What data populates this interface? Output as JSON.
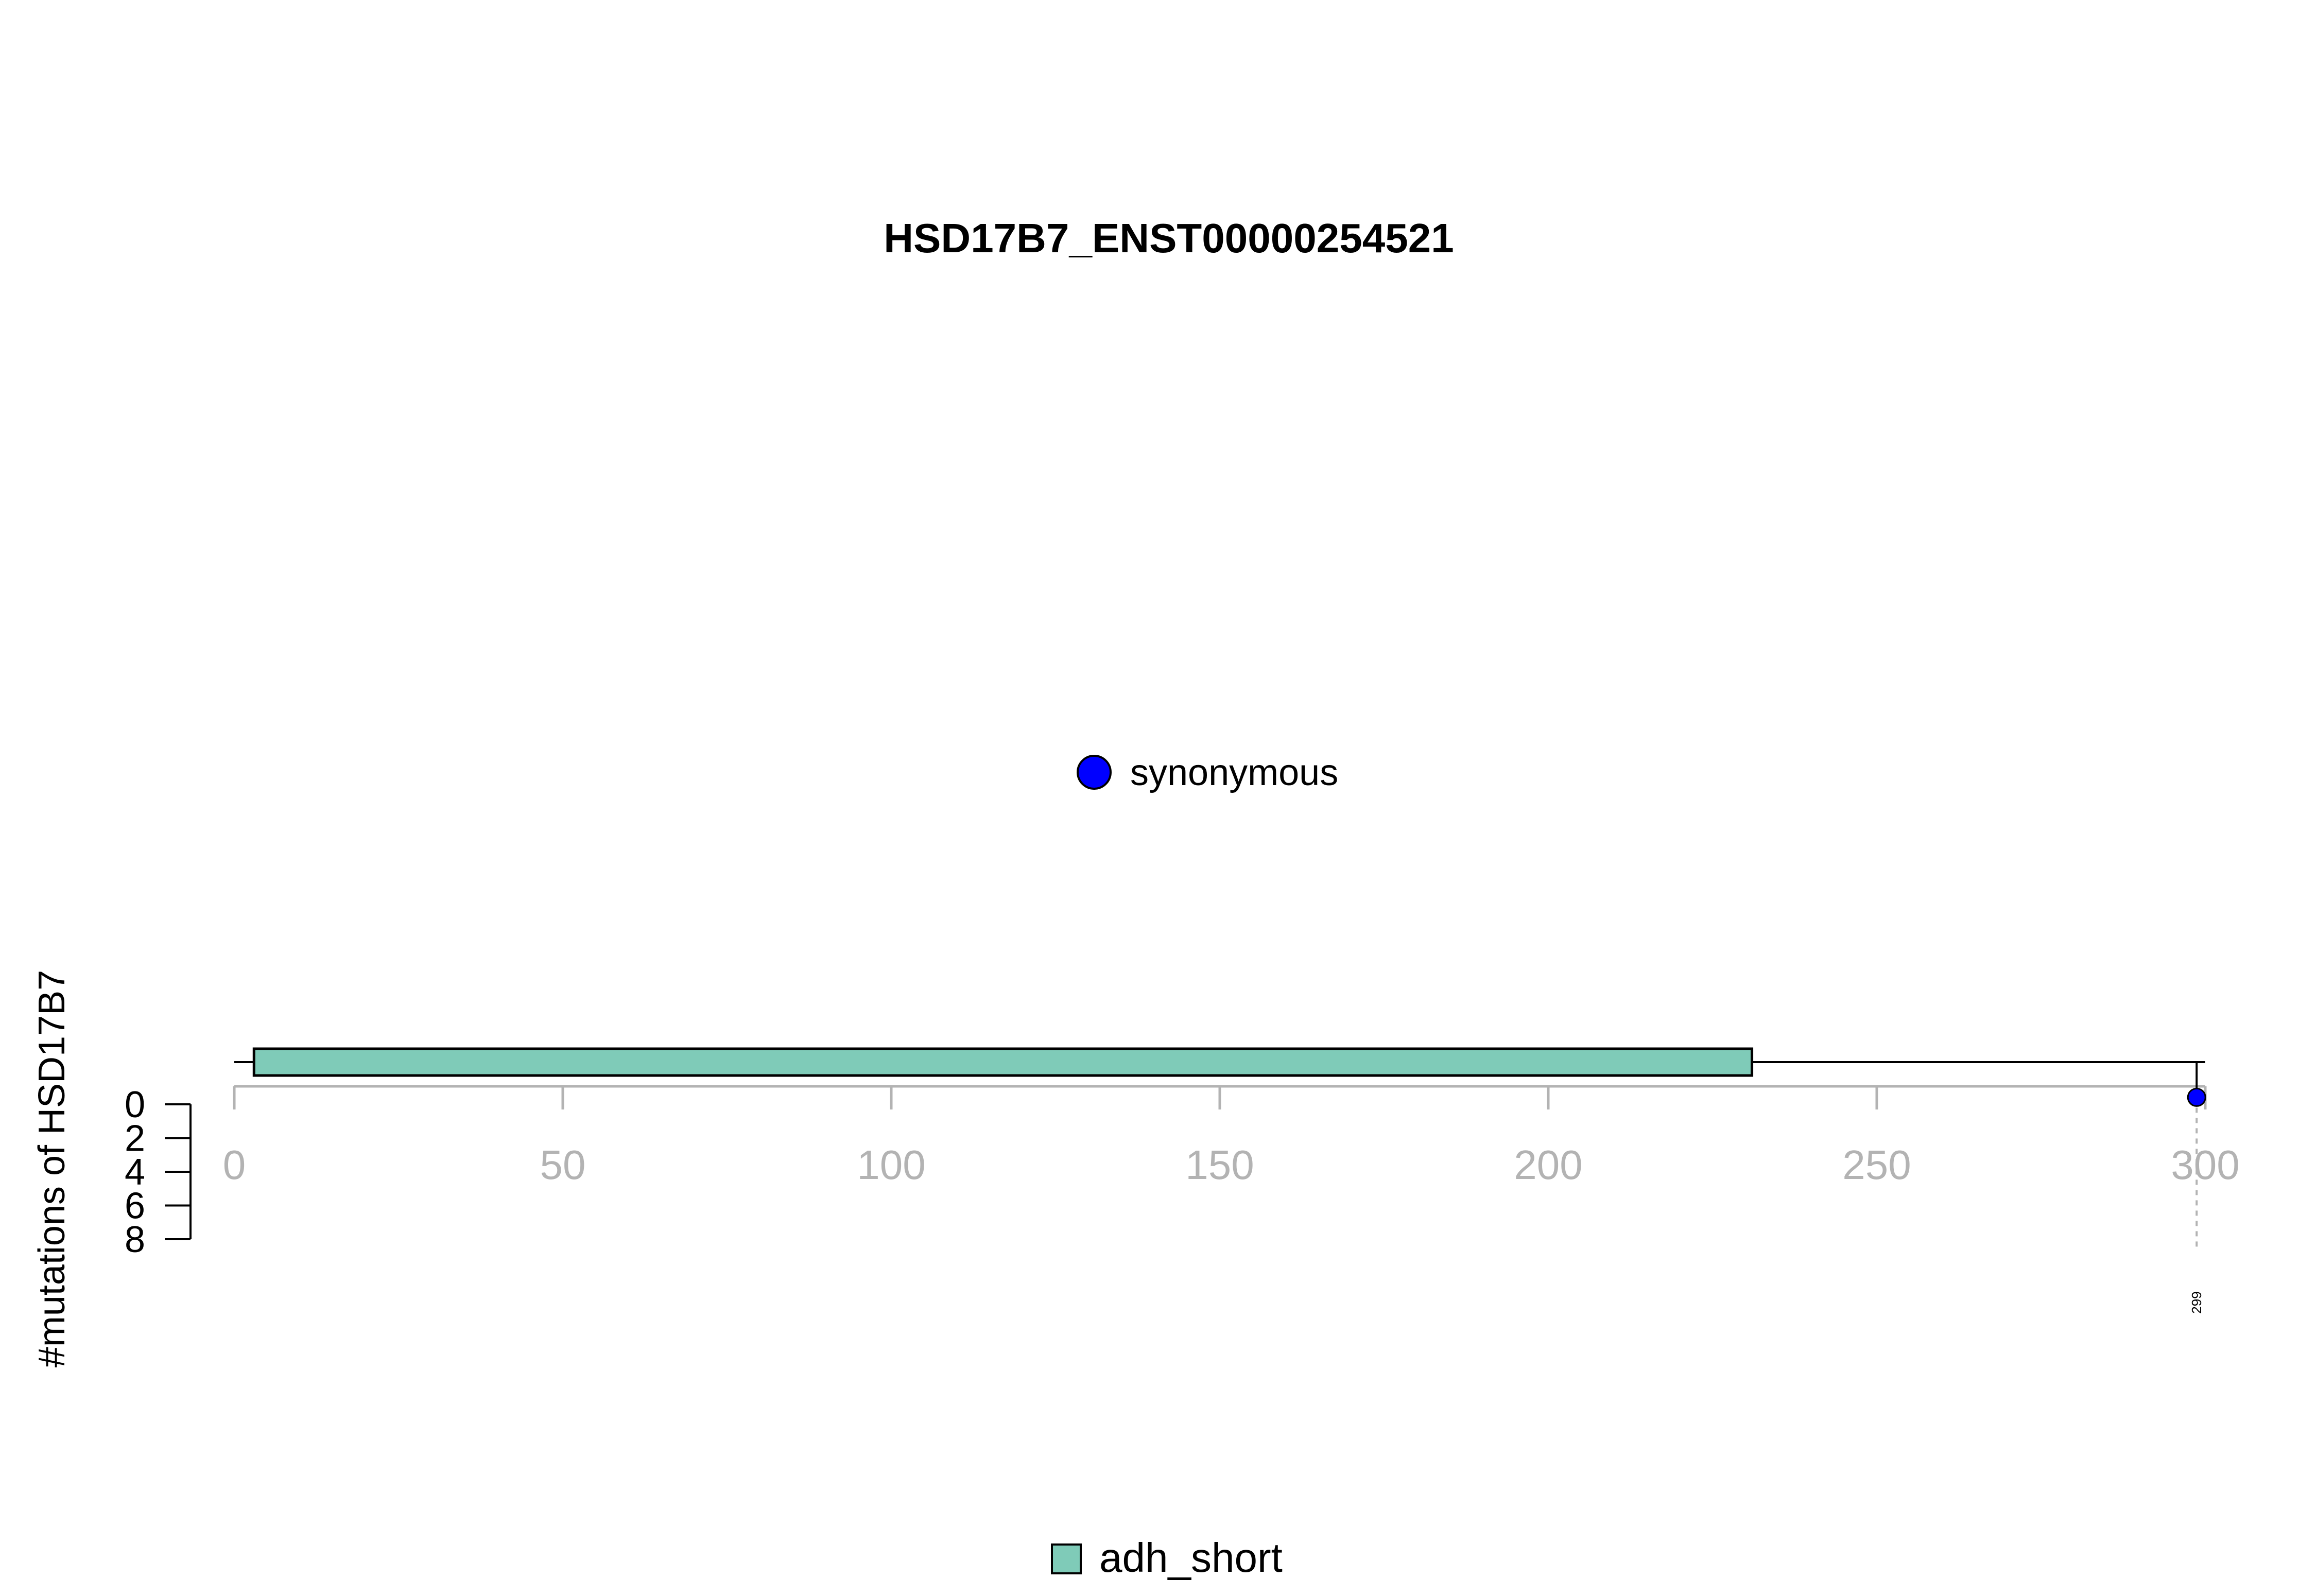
{
  "chart_data": {
    "type": "lollipop",
    "title": "HSD17B7_ENST00000254521",
    "ylabel": "#mutations of HSD17B7",
    "xlim": [
      0,
      300
    ],
    "x_ticks": [
      0,
      50,
      100,
      150,
      200,
      250,
      300
    ],
    "y_ticks": [
      0,
      2,
      4,
      6,
      8
    ],
    "ylim": [
      0,
      8
    ],
    "protein_length": 300,
    "domains": [
      {
        "name": "adh_short",
        "start": 3,
        "end": 231,
        "color": "#7fcbb8"
      }
    ],
    "mutations": [
      {
        "position": 299,
        "count": 1,
        "type": "synonymous",
        "label": "299",
        "color": "#0000ff"
      }
    ],
    "mutation_legend": [
      {
        "label": "synonymous",
        "color": "#0000ff"
      }
    ],
    "domain_legend": [
      {
        "label": "adh_short",
        "color": "#7fcbb8"
      }
    ],
    "colors": {
      "axis": "#b3b3b3",
      "guide": "#b3b3b3",
      "outline": "#000000"
    }
  }
}
